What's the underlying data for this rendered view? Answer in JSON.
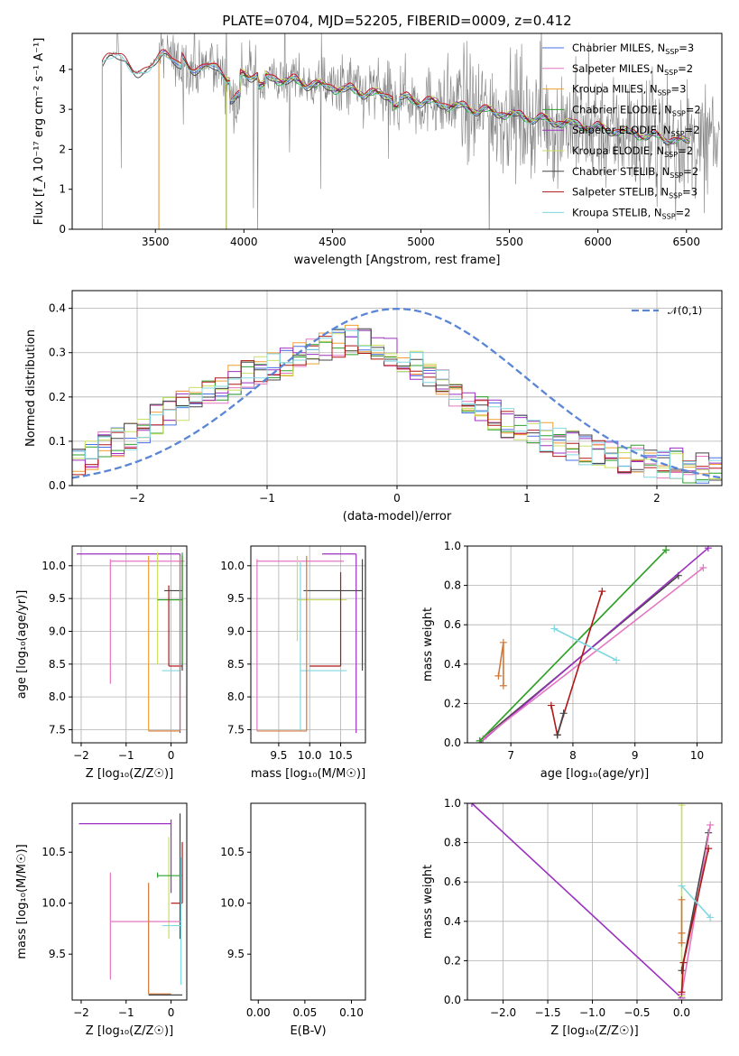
{
  "chart_data": [
    {
      "id": "spectrum",
      "type": "line",
      "title": "PLATE=0704, MJD=52205, FIBERID=0009, z=0.412",
      "xlabel": "wavelength [Angstrom, rest frame]",
      "ylabel": "Flux [f_λ 10⁻¹⁷ erg cm⁻² s⁻¹ A⁻¹]",
      "xlim": [
        3030,
        6700
      ],
      "ylim": [
        0,
        4.9
      ],
      "xticks": [
        "3500",
        "4000",
        "4500",
        "5000",
        "5500",
        "6000",
        "6500"
      ],
      "yticks": [
        "0",
        "1",
        "2",
        "3",
        "4"
      ],
      "grid": false,
      "legend_position": "top-right",
      "data_color": "#808080",
      "series": [
        {
          "name": "Chabrier MILES, N_SSP=3",
          "label_main": "Chabrier MILES, N",
          "label_sub": "SSP",
          "label_tail": "=3",
          "color": "#4a6fe3",
          "start": 3520,
          "end": 6520,
          "scale": 1.0
        },
        {
          "name": "Salpeter MILES, N_SSP=2",
          "label_main": "Salpeter MILES, N",
          "label_sub": "SSP",
          "label_tail": "=2",
          "color": "#e377c2",
          "start": 3520,
          "end": 6520,
          "scale": 1.01
        },
        {
          "name": "Kroupa MILES, N_SSP=3",
          "label_main": "Kroupa MILES, N",
          "label_sub": "SSP",
          "label_tail": "=3",
          "color": "#f0a030",
          "start": 3520,
          "end": 6520,
          "scale": 0.995
        },
        {
          "name": "Chabrier ELODIE, N_SSP=2",
          "label_main": "Chabrier ELODIE, N",
          "label_sub": "SSP",
          "label_tail": "=2",
          "color": "#2ca02c",
          "start": 3900,
          "end": 6520,
          "scale": 0.99
        },
        {
          "name": "Salpeter ELODIE, N_SSP=2",
          "label_main": "Salpeter ELODIE, N",
          "label_sub": "SSP",
          "label_tail": "=2",
          "color": "#9b30c0",
          "start": 3900,
          "end": 6520,
          "scale": 1.0
        },
        {
          "name": "Kroupa ELODIE, N_SSP=2",
          "label_main": "Kroupa ELODIE, N",
          "label_sub": "SSP",
          "label_tail": "=2",
          "color": "#c8e060",
          "start": 3900,
          "end": 6520,
          "scale": 1.005
        },
        {
          "name": "Chabrier STELIB, N_SSP=2",
          "label_main": "Chabrier STELIB, N",
          "label_sub": "SSP",
          "label_tail": "=2",
          "color": "#444444",
          "start": 3200,
          "end": 6520,
          "scale": 0.985
        },
        {
          "name": "Salpeter STELIB, N_SSP=3",
          "label_main": "Salpeter STELIB, N",
          "label_sub": "SSP",
          "label_tail": "=3",
          "color": "#b01818",
          "start": 3200,
          "end": 6520,
          "scale": 1.01
        },
        {
          "name": "Kroupa STELIB, N_SSP=2",
          "label_main": "Kroupa STELIB, N",
          "label_sub": "SSP",
          "label_tail": "=2",
          "color": "#80d8e0",
          "start": 3200,
          "end": 6520,
          "scale": 0.99
        }
      ]
    },
    {
      "id": "residuals",
      "type": "histogram",
      "xlabel": "(data-model)/error",
      "ylabel": "Normed distribution",
      "xlim": [
        -2.5,
        2.5
      ],
      "ylim": [
        0,
        0.44
      ],
      "xticks": [
        "−2",
        "−1",
        "0",
        "1",
        "2"
      ],
      "yticks": [
        "0.0",
        "0.1",
        "0.2",
        "0.3",
        "0.4"
      ],
      "grid": true,
      "legend_position": "top-right",
      "reference_curve": {
        "name": "𝒩(0,1)",
        "color": "#5b86d6",
        "style": "dashed",
        "mean": 0,
        "sigma": 1
      },
      "bin_width": 0.1,
      "approx_histogram_values": [
        0.05,
        0.07,
        0.09,
        0.1,
        0.11,
        0.13,
        0.15,
        0.17,
        0.18,
        0.2,
        0.21,
        0.22,
        0.24,
        0.25,
        0.26,
        0.27,
        0.28,
        0.29,
        0.3,
        0.31,
        0.32,
        0.33,
        0.32,
        0.31,
        0.3,
        0.29,
        0.27,
        0.25,
        0.23,
        0.21,
        0.19,
        0.17,
        0.16,
        0.14,
        0.13,
        0.12,
        0.11,
        0.1,
        0.09,
        0.08,
        0.07,
        0.07,
        0.06,
        0.06,
        0.05,
        0.05,
        0.05,
        0.04,
        0.04,
        0.04
      ]
    },
    {
      "id": "age-vs-Z",
      "type": "scatter",
      "xlabel": "Z [log₁₀(Z/Z☉)]",
      "ylabel": "age [log₁₀(age/yr)]",
      "xlim": [
        -2.2,
        0.35
      ],
      "ylim": [
        7.3,
        10.3
      ],
      "xticks": [
        "−2",
        "−1",
        "0"
      ],
      "yticks": [
        "7.5",
        "8.0",
        "8.5",
        "9.0",
        "9.5",
        "10.0"
      ],
      "grid": true,
      "errorbars": [
        {
          "color": "#9b30c0",
          "x": [
            -2.1,
            0.2
          ],
          "xerr_center": -0.95,
          "y": 10.18,
          "yerr": [
            7.45,
            10.18
          ]
        },
        {
          "color": "#e377c2",
          "x": [
            -1.35,
            0.3
          ],
          "y": 10.07,
          "yerr": [
            8.2,
            10.1
          ]
        },
        {
          "color": "#444444",
          "x": [
            -0.15,
            0.25
          ],
          "y": 9.62,
          "yerr": [
            8.4,
            10.15
          ]
        },
        {
          "color": "#c8e060",
          "x": [
            -0.3,
            0.25
          ],
          "y": 9.48,
          "yerr": [
            8.5,
            10.2
          ]
        },
        {
          "color": "#2ca02c",
          "x": [
            -0.3,
            0.25
          ],
          "y": 9.48,
          "yerr": [
            8.5,
            10.2
          ]
        },
        {
          "color": "#b01818",
          "x": [
            -0.05,
            0.25
          ],
          "y": 8.47,
          "yerr": [
            8.47,
            9.7
          ]
        },
        {
          "color": "#80d8e0",
          "x": [
            -0.2,
            0.2
          ],
          "y": 8.4,
          "yerr": [
            8.15,
            9.7
          ]
        },
        {
          "color": "#f0a030",
          "x": [
            -0.5,
            0.2
          ],
          "y": 7.48,
          "yerr": [
            7.48,
            10.15
          ]
        },
        {
          "color": "#d07838",
          "x": [
            -0.5,
            0.2
          ],
          "y": 7.48,
          "yerr": [
            7.48,
            10.15
          ]
        }
      ]
    },
    {
      "id": "age-vs-mass",
      "type": "scatter",
      "xlabel": "mass [log₁₀(M/M☉)]",
      "xlim": [
        9.05,
        10.9
      ],
      "ylim": [
        7.3,
        10.3
      ],
      "xticks": [
        "9.5",
        "10.0",
        "10.5"
      ],
      "yticks": [
        "7.5",
        "8.0",
        "8.5",
        "9.0",
        "9.5",
        "10.0"
      ],
      "grid": true,
      "errorbars": [
        {
          "color": "#9b30c0",
          "x": [
            10.2,
            10.75
          ],
          "y": 10.18,
          "yerr": [
            7.45,
            10.18
          ]
        },
        {
          "color": "#e377c2",
          "x": [
            9.15,
            10.55
          ],
          "y": 10.07,
          "yerr": [
            7.48,
            10.1
          ]
        },
        {
          "color": "#444444",
          "x": [
            9.9,
            10.85
          ],
          "y": 9.62,
          "yerr": [
            8.4,
            10.1
          ]
        },
        {
          "color": "#c8e060",
          "x": [
            9.8,
            10.6
          ],
          "y": 9.48,
          "yerr": [
            8.85,
            10.15
          ]
        },
        {
          "color": "#b01818",
          "x": [
            10.0,
            10.5
          ],
          "y": 8.47,
          "yerr": [
            8.47,
            9.9
          ]
        },
        {
          "color": "#80d8e0",
          "x": [
            9.85,
            10.6
          ],
          "y": 8.4,
          "yerr": [
            7.48,
            10.05
          ]
        },
        {
          "color": "#d07838",
          "x": [
            9.15,
            9.95
          ],
          "y": 7.48,
          "yerr": [
            7.48,
            10.15
          ]
        }
      ]
    },
    {
      "id": "massweight-vs-age",
      "type": "line",
      "xlabel": "age [log₁₀(age/yr)]",
      "ylabel": "mass weight",
      "xlim": [
        6.3,
        10.4
      ],
      "ylim": [
        0,
        1.0
      ],
      "xticks": [
        "7",
        "8",
        "9",
        "10"
      ],
      "yticks": [
        "0.0",
        "0.2",
        "0.4",
        "0.6",
        "0.8",
        "1.0"
      ],
      "grid": true,
      "series": [
        {
          "color": "#444444",
          "x": [
            6.5,
            9.7
          ],
          "y": [
            0.01,
            0.85
          ]
        },
        {
          "color": "#9b30c0",
          "x": [
            6.5,
            10.18
          ],
          "y": [
            0.0,
            0.99
          ]
        },
        {
          "color": "#e377c2",
          "x": [
            6.55,
            10.1
          ],
          "y": [
            0.02,
            0.89
          ]
        },
        {
          "color": "#c8e060",
          "x": [
            6.5,
            9.5
          ],
          "y": [
            0.01,
            0.98
          ]
        },
        {
          "color": "#2ca02c",
          "x": [
            6.5,
            9.5
          ],
          "y": [
            0.01,
            0.98
          ]
        },
        {
          "color": "#b01818",
          "x": [
            7.65,
            7.75,
            8.47
          ],
          "y": [
            0.19,
            0.04,
            0.77
          ]
        },
        {
          "color": "#444444",
          "x": [
            7.75,
            7.85
          ],
          "y": [
            0.04,
            0.15
          ]
        },
        {
          "color": "#80d8e0",
          "x": [
            7.7,
            8.7
          ],
          "y": [
            0.58,
            0.42
          ]
        },
        {
          "color": "#d07838",
          "x": [
            6.8,
            6.88,
            6.88
          ],
          "y": [
            0.34,
            0.51,
            0.29
          ]
        }
      ]
    },
    {
      "id": "mass-vs-Z",
      "type": "scatter",
      "xlabel": "Z [log₁₀(Z/Z☉)]",
      "ylabel": "mass [log₁₀(M/M☉)]",
      "xlim": [
        -2.2,
        0.35
      ],
      "ylim": [
        9.05,
        10.98
      ],
      "xticks": [
        "−2",
        "−1",
        "0"
      ],
      "yticks": [
        "9.5",
        "10.0",
        "10.5"
      ],
      "grid": false,
      "errorbars": [
        {
          "color": "#9b30c0",
          "x": [
            -2.05,
            0.0
          ],
          "y": 10.78,
          "yerr": [
            10.1,
            10.82
          ]
        },
        {
          "color": "#444444",
          "x": [
            0.2,
            0.2
          ],
          "y": 10.5,
          "yerr": [
            9.65,
            10.88
          ]
        },
        {
          "color": "#c8e060",
          "x": [
            -0.05,
            -0.05
          ],
          "y": 10.28,
          "yerr": [
            9.65,
            10.65
          ]
        },
        {
          "color": "#2ca02c",
          "x": [
            -0.3,
            0.25
          ],
          "y": 10.27,
          "yerr": [
            10.25,
            10.3
          ]
        },
        {
          "color": "#b01818",
          "x": [
            0.0,
            0.25
          ],
          "y": 10.0,
          "yerr": [
            10.0,
            10.6
          ]
        },
        {
          "color": "#e377c2",
          "x": [
            -1.35,
            0.22
          ],
          "y": 9.82,
          "yerr": [
            9.25,
            10.3
          ]
        },
        {
          "color": "#80d8e0",
          "x": [
            -0.2,
            0.22
          ],
          "y": 9.78,
          "yerr": [
            9.2,
            10.45
          ]
        },
        {
          "color": "#d07838",
          "x": [
            -0.5,
            0.0
          ],
          "y": 9.11,
          "yerr": [
            9.11,
            10.2
          ]
        },
        {
          "color": "#444444",
          "x": [
            -0.5,
            0.25
          ],
          "y": 9.1,
          "yerr": [
            9.1,
            9.1
          ]
        }
      ]
    },
    {
      "id": "mass-vs-EBV",
      "type": "scatter",
      "xlabel": "E(B-V)",
      "xlim": [
        -0.008,
        0.115
      ],
      "ylim": [
        9.05,
        10.98
      ],
      "xticks": [
        "0.00",
        "0.05",
        "0.10"
      ],
      "yticks": [
        "9.5",
        "10.0",
        "10.5"
      ],
      "grid": false,
      "errorbars": [
        {
          "color": "#444444",
          "x": 0.0,
          "yerr": [
            9.85,
            10.88
          ]
        },
        {
          "color": "#80d8e0",
          "x": 0.002,
          "yerr": [
            9.6,
            10.6
          ]
        },
        {
          "color": "#d07838",
          "x": 0.0,
          "yerr": [
            9.1,
            10.15
          ]
        },
        {
          "color": "#e377c2",
          "x": 0.002,
          "yerr": [
            9.4,
            10.4
          ]
        },
        {
          "color": "#444444",
          "x": 0.103,
          "yerr": [
            9.7,
            10.45
          ]
        },
        {
          "color": "#c8e060",
          "x": 0.104,
          "yerr": [
            9.95,
            10.65
          ]
        },
        {
          "color": "#2ca02c",
          "x": 0.105,
          "yerr": [
            9.8,
            10.62
          ]
        },
        {
          "color": "#9b30c0",
          "x": 0.108,
          "yerr": [
            10.1,
            10.82
          ]
        }
      ]
    },
    {
      "id": "massweight-vs-Z",
      "type": "line",
      "xlabel": "Z [log₁₀(Z/Z☉)]",
      "ylabel": "mass weight",
      "xlim": [
        -2.4,
        0.45
      ],
      "ylim": [
        0,
        1.0
      ],
      "xticks": [
        "−2.0",
        "−1.5",
        "−1.0",
        "−0.5",
        "0.0"
      ],
      "yticks": [
        "0.0",
        "0.2",
        "0.4",
        "0.6",
        "0.8",
        "1.0"
      ],
      "grid": true,
      "series": [
        {
          "color": "#9b30c0",
          "x": [
            -2.35,
            0.0
          ],
          "y": [
            1.0,
            0.01
          ]
        },
        {
          "color": "#c8e060",
          "x": [
            0.0,
            0.0
          ],
          "y": [
            0.02,
            0.99
          ]
        },
        {
          "color": "#444444",
          "x": [
            0.0,
            0.3
          ],
          "y": [
            0.15,
            0.85
          ]
        },
        {
          "color": "#e377c2",
          "x": [
            0.0,
            0.32
          ],
          "y": [
            0.03,
            0.89
          ]
        },
        {
          "color": "#b01818",
          "x": [
            0.0,
            0.02,
            0.3
          ],
          "y": [
            0.04,
            0.19,
            0.77
          ]
        },
        {
          "color": "#80d8e0",
          "x": [
            0.0,
            0.32
          ],
          "y": [
            0.58,
            0.42
          ]
        },
        {
          "color": "#d07838",
          "x": [
            0.0,
            0.0,
            0.0
          ],
          "y": [
            0.34,
            0.51,
            0.29
          ]
        }
      ]
    }
  ]
}
